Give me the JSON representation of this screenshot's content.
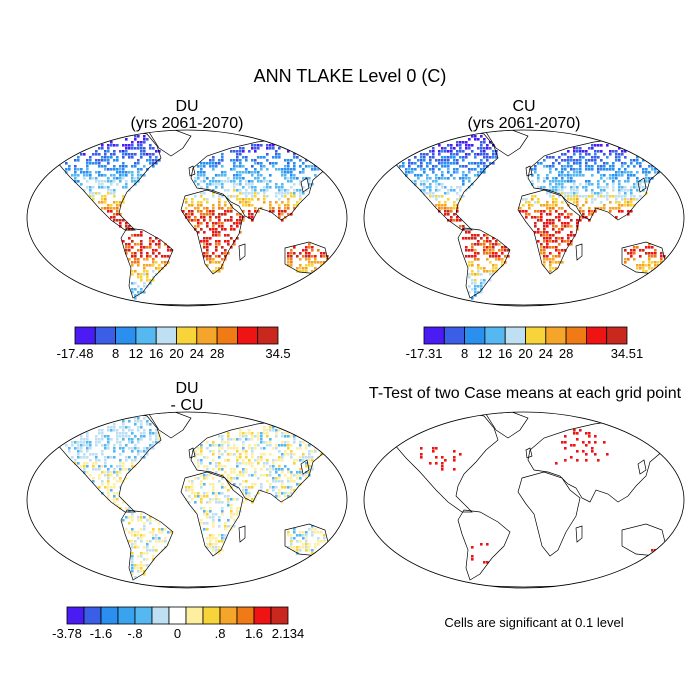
{
  "chart_data": {
    "type": "heatmap",
    "title": "ANN TLAKE Level 0 (C)",
    "panels": [
      {
        "id": "du",
        "title_lines": [
          "DU",
          "(yrs 2061-2070)"
        ],
        "colorbar": {
          "colors": [
            "#4a1bf2",
            "#3a5fe6",
            "#2a8fee",
            "#56b8f0",
            "#bfe0f2",
            "#f7d43a",
            "#f6a52b",
            "#f07a16",
            "#ee1414",
            "#c8281e"
          ],
          "labels": [
            "-17.48",
            "8",
            "12",
            "16",
            "20",
            "24",
            "28",
            "34.5"
          ],
          "label_slots": [
            0,
            2,
            3,
            4,
            5,
            6,
            7,
            10
          ]
        }
      },
      {
        "id": "cu",
        "title_lines": [
          "CU",
          "(yrs 2061-2070)"
        ],
        "colorbar": {
          "colors": [
            "#4a1bf2",
            "#3a5fe6",
            "#2a8fee",
            "#56b8f0",
            "#bfe0f2",
            "#f7d43a",
            "#f6a52b",
            "#f07a16",
            "#ee1414",
            "#c8281e"
          ],
          "labels": [
            "-17.31",
            "8",
            "12",
            "16",
            "20",
            "24",
            "28",
            "34.51"
          ],
          "label_slots": [
            0,
            2,
            3,
            4,
            5,
            6,
            7,
            10
          ]
        }
      },
      {
        "id": "diff",
        "title_lines": [
          "DU",
          "- CU"
        ],
        "colorbar": {
          "colors": [
            "#4a1bf2",
            "#3a5fe6",
            "#2a8fee",
            "#3aa3ee",
            "#56b8f0",
            "#bfe0f2",
            "#ffffff",
            "#fdeea0",
            "#f7d43a",
            "#f6a52b",
            "#f07a16",
            "#ee1414",
            "#c8281e"
          ],
          "labels": [
            "-3.78",
            "-1.6",
            "-.8",
            "0",
            ".8",
            "1.6",
            "2.134"
          ],
          "label_slots": [
            0,
            2,
            4,
            6.5,
            9,
            11,
            13
          ]
        }
      },
      {
        "id": "ttest",
        "title_lines": [
          "T-Test of two Case means at each grid point"
        ],
        "note": "Cells are significant at 0.1 level"
      }
    ]
  }
}
